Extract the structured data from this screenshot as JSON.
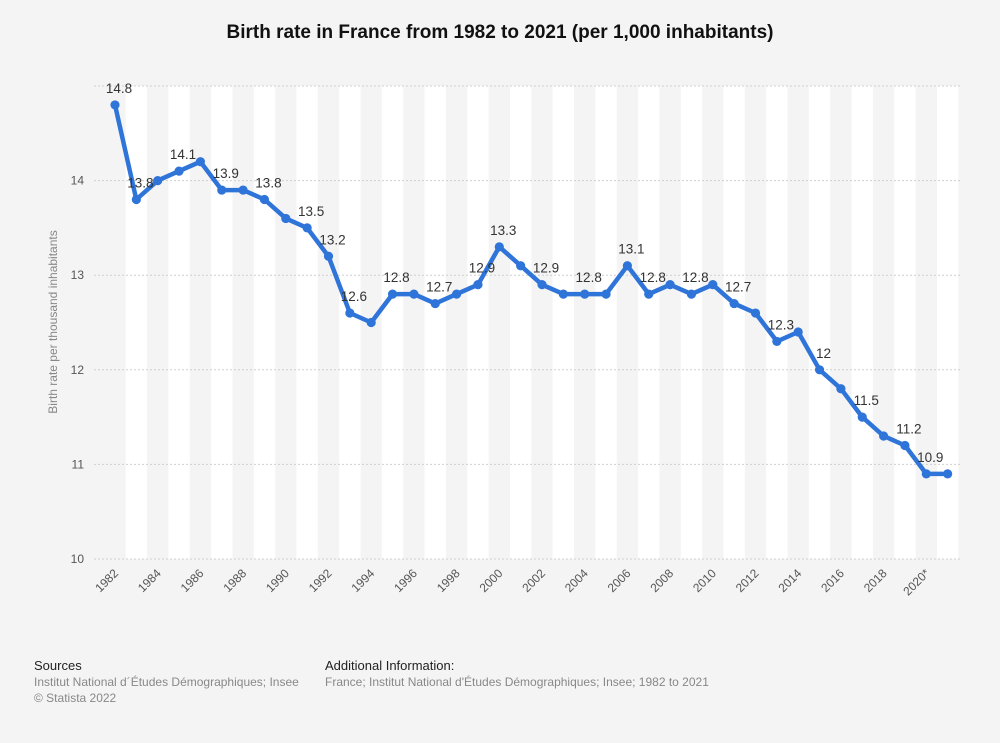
{
  "chart_data": {
    "type": "line",
    "title": "Birth rate in France from 1982 to 2021 (per 1,000 inhabitants)",
    "xlabel": "",
    "ylabel": "Birth rate per thousand inhabitants",
    "ylim": [
      10,
      15
    ],
    "yticks": [
      10,
      11,
      12,
      13,
      14
    ],
    "grid": true,
    "series_color": "#2f74d9",
    "x": [
      1982,
      1983,
      1984,
      1985,
      1986,
      1987,
      1988,
      1989,
      1990,
      1991,
      1992,
      1993,
      1994,
      1995,
      1996,
      1997,
      1998,
      1999,
      2000,
      2001,
      2002,
      2003,
      2004,
      2005,
      2006,
      2007,
      2008,
      2009,
      2010,
      2011,
      2012,
      2013,
      2014,
      2015,
      2016,
      2017,
      2018,
      2019,
      2020,
      2021
    ],
    "values": [
      14.8,
      13.8,
      14.0,
      14.1,
      14.2,
      13.9,
      13.9,
      13.8,
      13.6,
      13.5,
      13.2,
      12.6,
      12.5,
      12.8,
      12.8,
      12.7,
      12.8,
      12.9,
      13.3,
      13.1,
      12.9,
      12.8,
      12.8,
      12.8,
      13.1,
      12.8,
      12.9,
      12.8,
      12.9,
      12.7,
      12.6,
      12.3,
      12.4,
      12.0,
      11.8,
      11.5,
      11.3,
      11.2,
      10.9,
      10.9
    ],
    "tick_labels": [
      "1982",
      "1984",
      "1986",
      "1988",
      "1990",
      "1992",
      "1994",
      "1996",
      "1998",
      "2000",
      "2002",
      "2004",
      "2006",
      "2008",
      "2010",
      "2012",
      "2014",
      "2016",
      "2018",
      "2020*"
    ],
    "data_labels": [
      {
        "x": 1982,
        "text": "14.8"
      },
      {
        "x": 1983,
        "text": "13.8"
      },
      {
        "x": 1985,
        "text": "14.1"
      },
      {
        "x": 1987,
        "text": "13.9"
      },
      {
        "x": 1989,
        "text": "13.8"
      },
      {
        "x": 1991,
        "text": "13.5"
      },
      {
        "x": 1992,
        "text": "13.2"
      },
      {
        "x": 1993,
        "text": "12.6"
      },
      {
        "x": 1995,
        "text": "12.8"
      },
      {
        "x": 1997,
        "text": "12.7"
      },
      {
        "x": 1999,
        "text": "12.9"
      },
      {
        "x": 2000,
        "text": "13.3"
      },
      {
        "x": 2002,
        "text": "12.9"
      },
      {
        "x": 2004,
        "text": "12.8"
      },
      {
        "x": 2006,
        "text": "13.1"
      },
      {
        "x": 2007,
        "text": "12.8"
      },
      {
        "x": 2009,
        "text": "12.8"
      },
      {
        "x": 2011,
        "text": "12.7"
      },
      {
        "x": 2013,
        "text": "12.3"
      },
      {
        "x": 2015,
        "text": "12"
      },
      {
        "x": 2017,
        "text": "11.5"
      },
      {
        "x": 2019,
        "text": "11.2"
      },
      {
        "x": 2020,
        "text": "10.9"
      }
    ]
  },
  "footer": {
    "sources_title": "Sources",
    "sources_line1": "Institut National d´Études Démographiques; Insee",
    "sources_line2": "© Statista 2022",
    "info_title": "Additional Information:",
    "info_line1": "France; Institut National d'Études Démographiques; Insee; 1982 to 2021"
  }
}
